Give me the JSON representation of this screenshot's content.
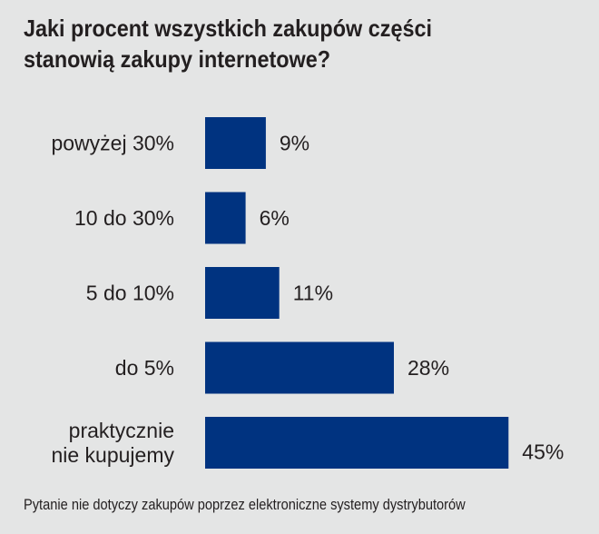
{
  "chart_data": {
    "type": "bar",
    "orientation": "horizontal",
    "title_lines": [
      "Jaki procent wszystkich zakupów części",
      "stanowią zakupy internetowe?"
    ],
    "categories": [
      [
        "powyżej 30%"
      ],
      [
        "10 do 30%"
      ],
      [
        "5 do 10%"
      ],
      [
        "do 5%"
      ],
      [
        "praktycznie",
        "nie kupujemy"
      ]
    ],
    "values": [
      9,
      6,
      11,
      28,
      45
    ],
    "value_labels": [
      "9%",
      "6%",
      "11%",
      "28%",
      "45%"
    ],
    "bar_color": "#003380",
    "grid": false,
    "legend": "none",
    "footnote": "Pytanie nie dotyczy zakupów poprzez elektroniczne systemy dystrybutorów"
  }
}
